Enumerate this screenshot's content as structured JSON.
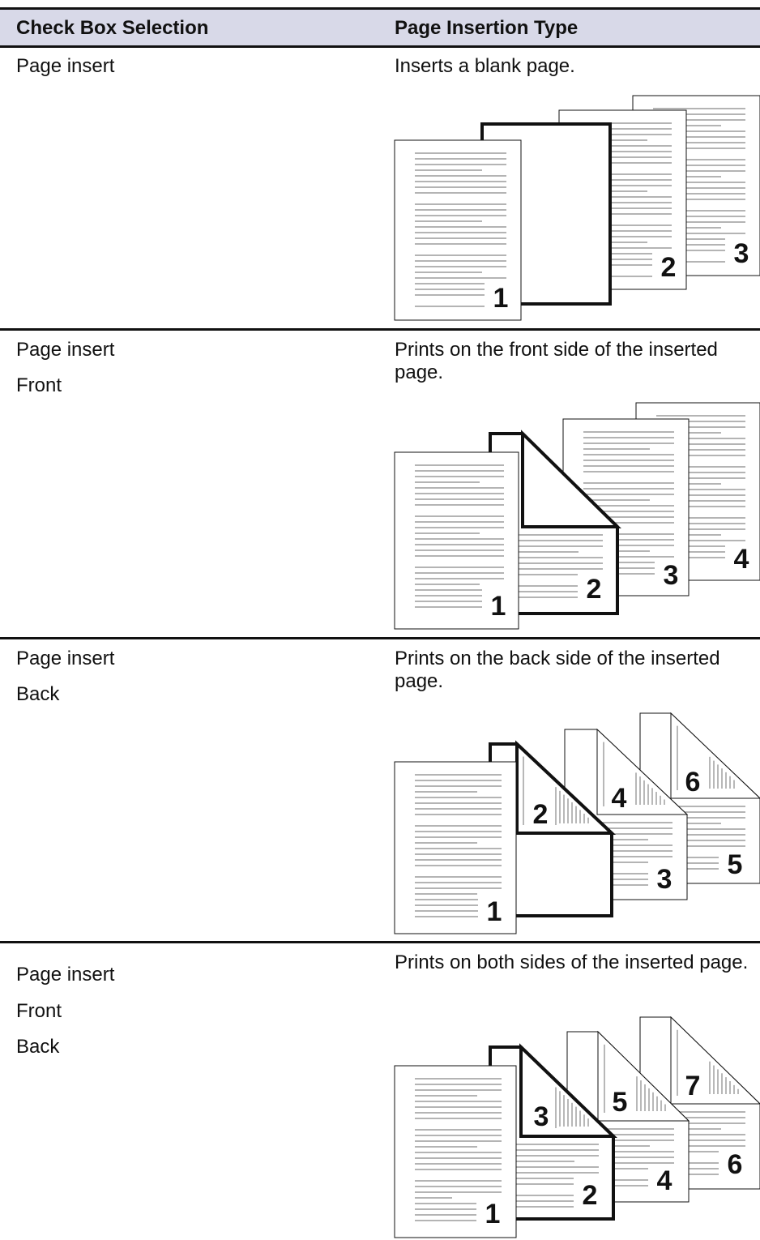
{
  "table": {
    "header": [
      "Check Box Selection",
      "Page Insertion Type"
    ],
    "rows": [
      {
        "options": [
          "Page insert"
        ],
        "description": "Inserts a blank page.",
        "pages": [
          "1",
          "2",
          "3"
        ]
      },
      {
        "options": [
          "Page insert",
          "Front"
        ],
        "description": "Prints on the front side of the inserted page.",
        "pages": [
          "1",
          "2",
          "3",
          "4"
        ]
      },
      {
        "options": [
          "Page insert",
          "Back"
        ],
        "description": "Prints on the back side of the inserted page.",
        "pages": [
          "1",
          "2",
          "3",
          "4",
          "5",
          "6"
        ]
      },
      {
        "options": [
          "Page insert",
          "Front",
          "Back"
        ],
        "description": "Prints on both sides of the inserted page.",
        "pages": [
          "1",
          "2",
          "3",
          "4",
          "5",
          "6",
          "7"
        ]
      }
    ]
  }
}
